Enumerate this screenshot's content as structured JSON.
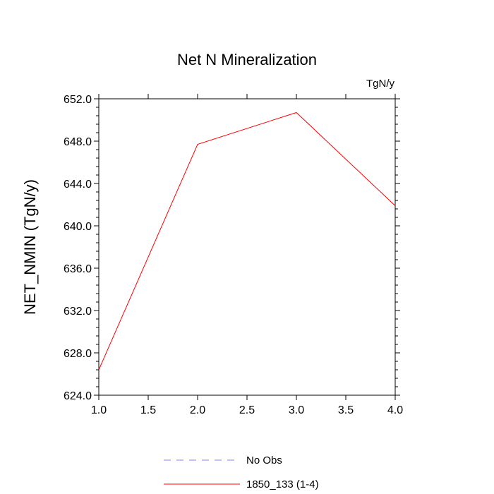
{
  "chart_data": {
    "type": "line",
    "title": "Net N Mineralization",
    "units_label": "TgN/y",
    "ylabel": "NET_NMIN  (TgN/y)",
    "xlabel": "",
    "xlim": [
      1.0,
      4.0
    ],
    "ylim": [
      624.0,
      652.0
    ],
    "x_ticks": [
      "1.0",
      "1.5",
      "2.0",
      "2.5",
      "3.0",
      "3.5",
      "4.0"
    ],
    "y_ticks": [
      "624.0",
      "628.0",
      "632.0",
      "636.0",
      "640.0",
      "644.0",
      "648.0",
      "652.0"
    ],
    "series": [
      {
        "name": "1850_133 (1-4)",
        "color": "#ff0000",
        "style": "solid",
        "x": [
          1.0,
          2.0,
          3.0,
          4.0
        ],
        "y": [
          626.4,
          647.7,
          650.7,
          641.9
        ]
      }
    ],
    "legend": [
      {
        "label": "No Obs",
        "color": "#8080ff",
        "style": "dashed"
      },
      {
        "label": "1850_133 (1-4)",
        "color": "#ff0000",
        "style": "solid"
      }
    ],
    "legend_placement": "bottom-center"
  }
}
